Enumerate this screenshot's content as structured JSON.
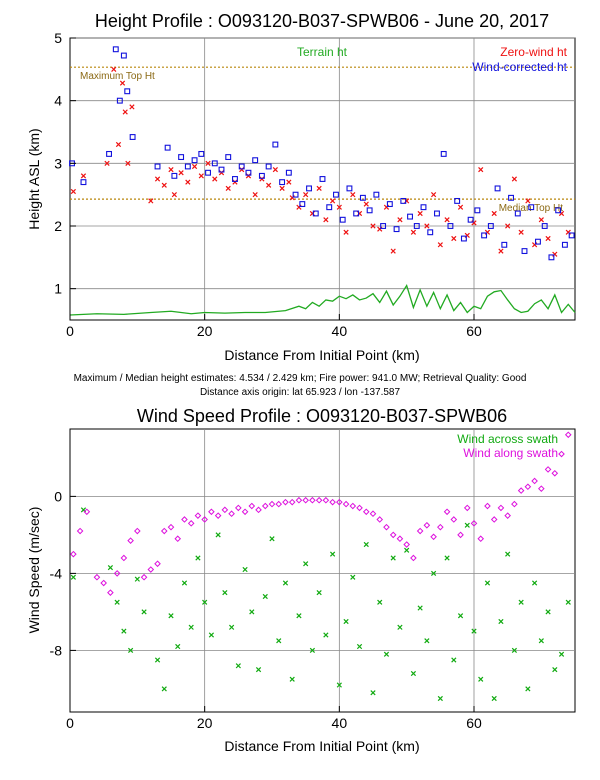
{
  "chart_data": [
    {
      "type": "scatter",
      "title": "Height Profile : O093120-B037-SPWB06 - June 20, 2017",
      "xlabel": "Distance From Initial Point (km)",
      "ylabel": "Height ASL (km)",
      "xlim": [
        0,
        75
      ],
      "ylim": [
        0.5,
        5.0
      ],
      "xticks": [
        0,
        20,
        40,
        60
      ],
      "yticks": [
        1,
        2,
        3,
        4,
        5
      ],
      "grid": true,
      "legend_position": "top-right",
      "reference_lines": [
        {
          "name": "Maximum Top Ht",
          "y": 4.534,
          "color": "#b8860b"
        },
        {
          "name": "Median Top Ht",
          "y": 2.429,
          "color": "#b8860b"
        }
      ],
      "series": [
        {
          "name": "Terrain ht",
          "kind": "line",
          "color": "#22aa22",
          "x": [
            0,
            4,
            8,
            12,
            15,
            18,
            20,
            23,
            26,
            29,
            32,
            34,
            35,
            36,
            37,
            38,
            39,
            40,
            41,
            42,
            43,
            44,
            45,
            46,
            47,
            48,
            49,
            50,
            51,
            52,
            53,
            54,
            55,
            56,
            57,
            58,
            59,
            60,
            61,
            62,
            63,
            64,
            65,
            66,
            67,
            68,
            69,
            70,
            71,
            72,
            73,
            74,
            75
          ],
          "values": [
            0.58,
            0.6,
            0.59,
            0.62,
            0.64,
            0.6,
            0.62,
            0.61,
            0.62,
            0.62,
            0.65,
            0.72,
            0.68,
            0.78,
            0.72,
            0.82,
            0.8,
            0.88,
            0.84,
            0.9,
            0.82,
            0.85,
            0.92,
            0.78,
            0.96,
            0.74,
            0.88,
            1.05,
            0.7,
            0.98,
            0.72,
            0.94,
            0.68,
            0.9,
            0.65,
            0.78,
            0.62,
            0.72,
            0.68,
            0.88,
            0.95,
            0.97,
            0.82,
            0.68,
            0.62,
            0.64,
            0.76,
            0.82,
            0.68,
            0.9,
            0.62,
            0.75,
            0.62
          ]
        },
        {
          "name": "Zero-wind ht",
          "kind": "marker-x",
          "color": "#ee1111",
          "x": [
            0.5,
            2,
            5.5,
            6.5,
            7.2,
            7.8,
            8.2,
            8.6,
            9.2,
            12,
            13,
            14,
            15,
            15.5,
            16.5,
            17.5,
            18.5,
            19.5,
            20.5,
            21.5,
            22.5,
            23.5,
            24.5,
            25.5,
            26.5,
            27.5,
            28.5,
            29.5,
            30.5,
            31.5,
            32.5,
            33,
            34,
            35,
            36,
            37,
            38,
            39,
            40,
            41,
            42,
            43,
            44,
            45,
            46,
            47,
            48,
            49,
            50,
            51,
            52,
            53,
            54,
            55,
            56,
            57,
            58,
            59,
            60,
            61,
            62,
            63,
            64,
            65,
            66,
            67,
            68,
            69,
            70,
            71,
            72,
            73,
            74
          ],
          "values": [
            2.55,
            2.8,
            3.0,
            4.5,
            3.3,
            4.28,
            3.82,
            3.0,
            3.9,
            2.4,
            2.75,
            2.65,
            2.9,
            2.5,
            2.85,
            2.7,
            2.95,
            2.8,
            3.0,
            2.75,
            2.85,
            2.6,
            2.7,
            2.9,
            2.8,
            2.5,
            2.75,
            2.65,
            2.9,
            2.6,
            2.7,
            2.45,
            2.3,
            2.5,
            2.2,
            2.6,
            2.1,
            2.4,
            2.3,
            1.9,
            2.5,
            2.2,
            2.35,
            2.0,
            1.95,
            2.3,
            1.6,
            2.1,
            2.4,
            1.9,
            2.2,
            2.0,
            2.5,
            1.7,
            2.1,
            1.8,
            2.3,
            1.85,
            2.05,
            2.9,
            1.9,
            2.2,
            1.6,
            2.0,
            2.75,
            1.9,
            2.4,
            1.7,
            2.1,
            1.8,
            1.55,
            2.2,
            1.9
          ]
        },
        {
          "name": "Wind-corrected ht",
          "kind": "marker-square",
          "color": "#1111dd",
          "x": [
            0.3,
            2,
            5.8,
            6.8,
            7.4,
            8,
            8.5,
            9.3,
            13,
            14.5,
            15.5,
            16.5,
            17.5,
            18.5,
            19.5,
            20.5,
            21.5,
            22.5,
            23.5,
            24.5,
            25.5,
            26.5,
            27.5,
            28.5,
            29.5,
            30.5,
            31.5,
            32.5,
            33.5,
            34.5,
            35.5,
            36.5,
            37.5,
            38.5,
            39.5,
            40.5,
            41.5,
            42.5,
            43.5,
            44.5,
            45.5,
            46.5,
            47.5,
            48.5,
            49.5,
            50.5,
            51.5,
            52.5,
            53.5,
            54.5,
            55.5,
            56.5,
            57.5,
            58.5,
            59.5,
            60.5,
            61.5,
            62.5,
            63.5,
            64.5,
            65.5,
            66.5,
            67.5,
            68.5,
            69.5,
            70.5,
            71.5,
            72.5,
            73.5,
            74.5
          ],
          "values": [
            3.0,
            2.7,
            3.15,
            4.82,
            4.0,
            4.72,
            4.15,
            3.42,
            2.95,
            3.25,
            2.8,
            3.1,
            2.95,
            3.05,
            3.15,
            2.85,
            3.0,
            2.9,
            3.1,
            2.75,
            2.95,
            2.85,
            3.05,
            2.8,
            2.95,
            3.3,
            2.7,
            2.85,
            2.5,
            2.35,
            2.6,
            2.2,
            2.75,
            2.3,
            2.5,
            2.1,
            2.6,
            2.2,
            2.45,
            2.25,
            2.5,
            2.0,
            2.35,
            1.95,
            2.4,
            2.15,
            2.0,
            2.3,
            1.9,
            2.2,
            3.15,
            2.0,
            2.4,
            1.8,
            2.1,
            2.25,
            1.85,
            2.0,
            2.6,
            1.7,
            2.45,
            2.2,
            1.6,
            2.3,
            1.75,
            2.0,
            1.5,
            2.25,
            1.7,
            1.85
          ]
        }
      ]
    },
    {
      "type": "scatter",
      "title": "Wind Speed Profile : O093120-B037-SPWB06",
      "xlabel": "Distance From Initial Point (km)",
      "ylabel": "Wind Speed (m/sec)",
      "xlim": [
        0,
        75
      ],
      "ylim": [
        -11.2,
        3.5
      ],
      "xticks": [
        0,
        20,
        40,
        60
      ],
      "yticks": [
        -8,
        -4,
        0
      ],
      "grid": true,
      "legend_position": "top-right",
      "series": [
        {
          "name": "Wind across swath",
          "kind": "marker-x",
          "color": "#11aa11",
          "x": [
            0.5,
            2,
            6,
            7,
            8,
            9,
            10,
            11,
            13,
            14,
            15,
            16,
            17,
            18,
            19,
            20,
            21,
            22,
            23,
            24,
            25,
            26,
            27,
            28,
            29,
            30,
            31,
            32,
            33,
            34,
            35,
            36,
            37,
            38,
            39,
            40,
            41,
            42,
            43,
            44,
            45,
            46,
            47,
            48,
            49,
            50,
            51,
            52,
            53,
            54,
            55,
            56,
            57,
            58,
            59,
            60,
            61,
            62,
            63,
            64,
            65,
            66,
            67,
            68,
            69,
            70,
            71,
            72,
            73,
            74
          ],
          "values": [
            -4.2,
            -0.7,
            -3.7,
            -5.5,
            -7.0,
            -8.0,
            -4.3,
            -6.0,
            -8.5,
            -10.0,
            -6.2,
            -7.8,
            -4.5,
            -6.8,
            -3.2,
            -5.5,
            -7.2,
            -2.0,
            -5.0,
            -6.8,
            -8.8,
            -3.8,
            -6.0,
            -9.0,
            -5.2,
            -2.2,
            -7.5,
            -4.5,
            -9.5,
            -6.2,
            -3.5,
            -8.0,
            -5.0,
            -7.2,
            -3.0,
            -9.8,
            -6.5,
            -4.2,
            -7.8,
            -2.5,
            -10.2,
            -5.5,
            -8.2,
            -3.2,
            -6.8,
            -2.8,
            -9.2,
            -5.8,
            -7.5,
            -4.0,
            -10.5,
            -3.2,
            -8.5,
            -6.2,
            -1.5,
            -7.0,
            -9.5,
            -4.5,
            -10.5,
            -6.5,
            -3.0,
            -8.0,
            -5.5,
            -10.0,
            -4.5,
            -7.5,
            -6.0,
            -9.0,
            -8.2,
            -5.5
          ]
        },
        {
          "name": "Wind along swath",
          "kind": "marker-diamond",
          "color": "#dd11dd",
          "x": [
            0.5,
            1.5,
            2.5,
            4,
            5,
            6,
            7,
            8,
            9,
            10,
            11,
            12,
            13,
            14,
            15,
            16,
            17,
            18,
            19,
            20,
            21,
            22,
            23,
            24,
            25,
            26,
            27,
            28,
            29,
            30,
            31,
            32,
            33,
            34,
            35,
            36,
            37,
            38,
            39,
            40,
            41,
            42,
            43,
            44,
            45,
            46,
            47,
            48,
            49,
            50,
            51,
            52,
            53,
            54,
            55,
            56,
            57,
            58,
            59,
            60,
            61,
            62,
            63,
            64,
            65,
            66,
            67,
            68,
            69,
            70,
            71,
            72,
            73,
            74
          ],
          "values": [
            -3.0,
            -1.8,
            -0.8,
            -4.2,
            -4.5,
            -5.0,
            -4.0,
            -3.2,
            -2.3,
            -1.8,
            -4.2,
            -3.8,
            -3.5,
            -1.8,
            -1.6,
            -2.2,
            -1.2,
            -1.4,
            -1.0,
            -1.2,
            -0.8,
            -1.0,
            -0.7,
            -0.9,
            -0.6,
            -0.8,
            -0.5,
            -0.7,
            -0.5,
            -0.4,
            -0.4,
            -0.3,
            -0.3,
            -0.2,
            -0.2,
            -0.2,
            -0.2,
            -0.2,
            -0.3,
            -0.3,
            -0.4,
            -0.5,
            -0.6,
            -0.8,
            -0.9,
            -1.2,
            -1.6,
            -2.0,
            -2.2,
            -2.5,
            -3.2,
            -1.8,
            -1.5,
            -2.1,
            -1.6,
            -0.8,
            -1.2,
            -2.0,
            -0.6,
            -1.4,
            -2.2,
            -0.5,
            -1.2,
            -0.6,
            -1.0,
            -0.4,
            0.3,
            0.5,
            0.8,
            0.4,
            1.4,
            1.2,
            2.2,
            3.2
          ]
        }
      ]
    }
  ],
  "captions": {
    "line1": "Maximum / Median height estimates:  4.534 /  2.429 km;   Fire power:   941.0 MW;   Retrieval Quality: Good",
    "line2": "Distance axis origin: lat  65.923 / lon -137.587"
  }
}
